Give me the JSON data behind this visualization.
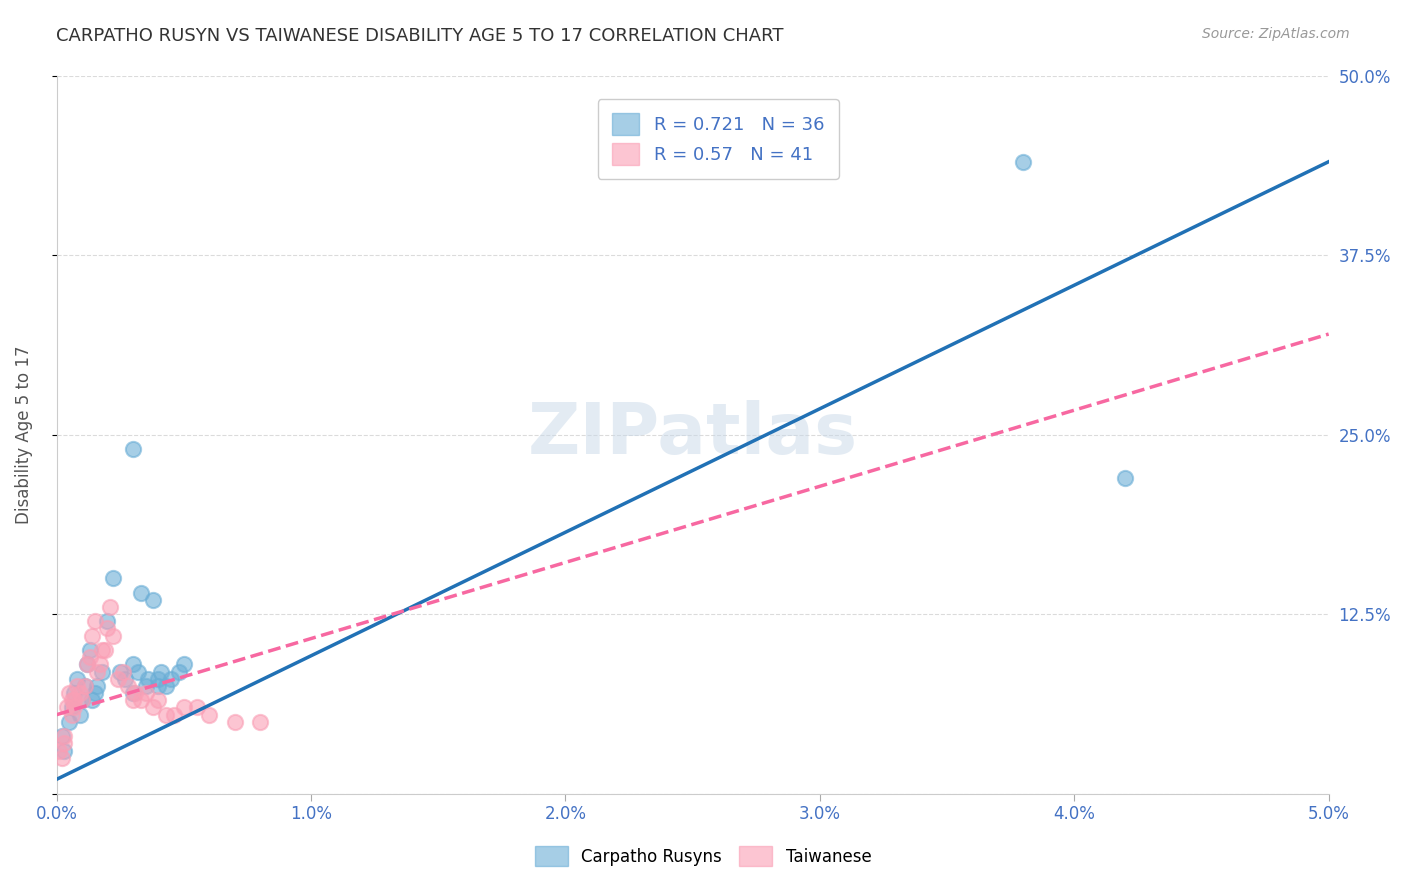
{
  "title": "CARPATHO RUSYN VS TAIWANESE DISABILITY AGE 5 TO 17 CORRELATION CHART",
  "source": "Source: ZipAtlas.com",
  "xlabel": "",
  "ylabel": "Disability Age 5 to 17",
  "xlim": [
    0.0,
    0.05
  ],
  "ylim": [
    0.0,
    0.5
  ],
  "xticks": [
    0.0,
    0.01,
    0.02,
    0.03,
    0.04,
    0.05
  ],
  "xticklabels": [
    "0.0%",
    "1.0%",
    "2.0%",
    "3.0%",
    "4.0%",
    "5.0%"
  ],
  "yticks": [
    0.0,
    0.125,
    0.25,
    0.375,
    0.5
  ],
  "yticklabels": [
    "",
    "12.5%",
    "25.0%",
    "37.5%",
    "50.0%"
  ],
  "blue_color": "#6baed6",
  "pink_color": "#fa9fb5",
  "blue_line_color": "#2171b5",
  "pink_line_color": "#f768a1",
  "blue_R": 0.721,
  "blue_N": 36,
  "pink_R": 0.57,
  "pink_N": 41,
  "watermark": "ZIPatlas",
  "legend_label_blue": "Carpatho Rusyns",
  "legend_label_pink": "Taiwanese",
  "blue_scatter_x": [
    0.0002,
    0.0003,
    0.0005,
    0.0006,
    0.0007,
    0.0008,
    0.0009,
    0.001,
    0.0011,
    0.0012,
    0.0013,
    0.0014,
    0.0015,
    0.0016,
    0.0018,
    0.002,
    0.0022,
    0.0025,
    0.0027,
    0.003,
    0.003,
    0.0032,
    0.0033,
    0.0035,
    0.0036,
    0.0038,
    0.004,
    0.004,
    0.0041,
    0.0043,
    0.0045,
    0.0048,
    0.005,
    0.038,
    0.042,
    0.003
  ],
  "blue_scatter_y": [
    0.04,
    0.03,
    0.05,
    0.06,
    0.07,
    0.08,
    0.055,
    0.065,
    0.075,
    0.09,
    0.1,
    0.065,
    0.07,
    0.075,
    0.085,
    0.12,
    0.15,
    0.085,
    0.08,
    0.07,
    0.09,
    0.085,
    0.14,
    0.075,
    0.08,
    0.135,
    0.075,
    0.08,
    0.085,
    0.075,
    0.08,
    0.085,
    0.09,
    0.44,
    0.22,
    0.24
  ],
  "pink_scatter_x": [
    0.0001,
    0.0002,
    0.0003,
    0.0003,
    0.0004,
    0.0005,
    0.0006,
    0.0006,
    0.0007,
    0.0007,
    0.0008,
    0.0009,
    0.001,
    0.0011,
    0.0012,
    0.0013,
    0.0014,
    0.0015,
    0.0016,
    0.0017,
    0.0018,
    0.0019,
    0.002,
    0.0021,
    0.0022,
    0.0024,
    0.0026,
    0.0028,
    0.003,
    0.0031,
    0.0033,
    0.0035,
    0.0038,
    0.004,
    0.0043,
    0.0046,
    0.005,
    0.0055,
    0.006,
    0.007,
    0.008
  ],
  "pink_scatter_y": [
    0.03,
    0.025,
    0.035,
    0.04,
    0.06,
    0.07,
    0.065,
    0.055,
    0.06,
    0.065,
    0.075,
    0.07,
    0.065,
    0.075,
    0.09,
    0.095,
    0.11,
    0.12,
    0.085,
    0.09,
    0.1,
    0.1,
    0.115,
    0.13,
    0.11,
    0.08,
    0.085,
    0.075,
    0.065,
    0.07,
    0.065,
    0.07,
    0.06,
    0.065,
    0.055,
    0.055,
    0.06,
    0.06,
    0.055,
    0.05,
    0.05
  ],
  "blue_trend_x": [
    0.0,
    0.05
  ],
  "blue_trend_y": [
    0.01,
    0.44
  ],
  "pink_trend_x": [
    0.0,
    0.05
  ],
  "pink_trend_y": [
    0.055,
    0.32
  ],
  "background_color": "#ffffff",
  "grid_color": "#cccccc",
  "title_color": "#333333",
  "axis_label_color": "#4472c4",
  "tick_label_color_right": "#4472c4",
  "tick_label_color_bottom": "#4472c4"
}
